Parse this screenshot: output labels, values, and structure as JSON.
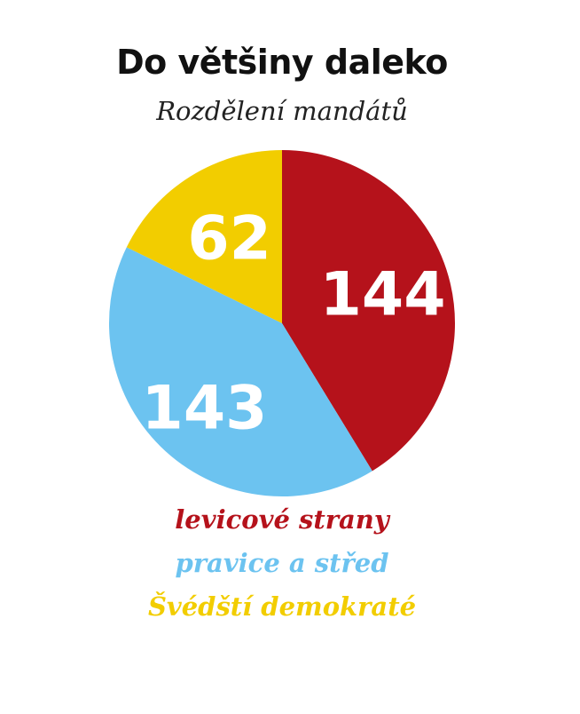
{
  "chart_data": {
    "type": "pie",
    "title": "Do většiny daleko",
    "subtitle": "Rozdělení mandátů",
    "slices": [
      {
        "label": "levicové strany",
        "value": 144,
        "color": "#b5121b"
      },
      {
        "label": "pravice a střed",
        "value": 143,
        "color": "#6cc3f0"
      },
      {
        "label": "Švédští demokraté",
        "value": 62,
        "color": "#f2cd00"
      }
    ],
    "legend_placement": "bottom"
  }
}
